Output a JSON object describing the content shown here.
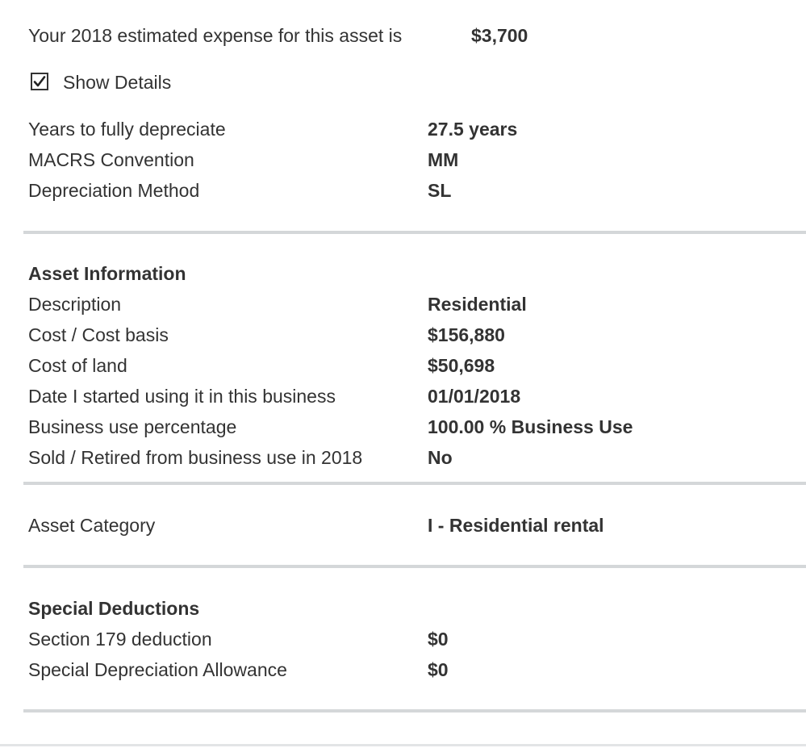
{
  "summary": {
    "estimated_expense_label": "Your 2018 estimated expense for this asset is",
    "estimated_expense_value": "$3,700"
  },
  "show_details": {
    "label": "Show Details",
    "checked": true
  },
  "depreciation": {
    "years_label": "Years to fully depreciate",
    "years_value": "27.5 years",
    "convention_label": "MACRS Convention",
    "convention_value": "MM",
    "method_label": "Depreciation Method",
    "method_value": "SL"
  },
  "asset_information": {
    "heading": "Asset Information",
    "rows": [
      {
        "label": "Description",
        "value": "Residential"
      },
      {
        "label": "Cost / Cost basis",
        "value": "$156,880"
      },
      {
        "label": "Cost of land",
        "value": "$50,698"
      },
      {
        "label": "Date I started using it in this business",
        "value": "01/01/2018"
      },
      {
        "label": "Business use percentage",
        "value": "100.00 % Business Use"
      },
      {
        "label": "Sold / Retired from business use in 2018",
        "value": "No"
      }
    ]
  },
  "asset_category": {
    "label": "Asset Category",
    "value": "I - Residential rental"
  },
  "special_deductions": {
    "heading": "Special Deductions",
    "rows": [
      {
        "label": "Section 179 deduction",
        "value": "$0"
      },
      {
        "label": "Special Depreciation Allowance",
        "value": "$0"
      }
    ]
  },
  "colors": {
    "text": "#333333",
    "divider": "#d4d7d9"
  }
}
